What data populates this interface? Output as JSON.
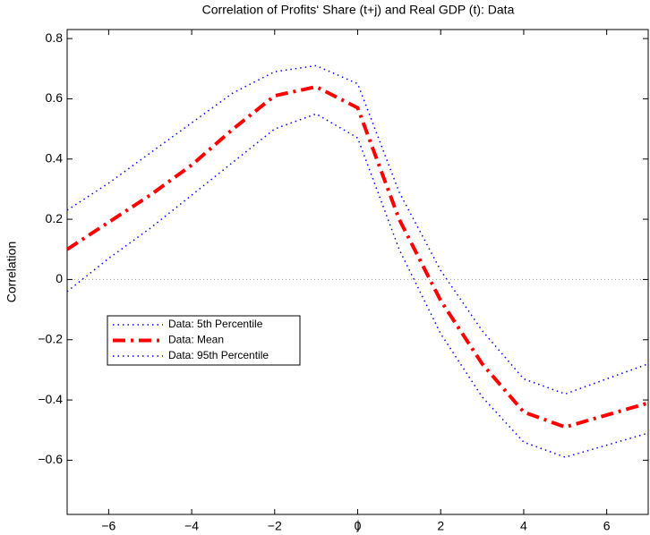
{
  "chart_data": {
    "type": "line",
    "title": "Correlation of Profits‘ Share (t+j) and Real GDP (t): Data",
    "xlabel": "j",
    "ylabel": "Correlation",
    "x": [
      -7,
      -6,
      -5,
      -4,
      -3,
      -2,
      -1,
      0,
      1,
      2,
      3,
      4,
      5,
      6,
      7
    ],
    "series": [
      {
        "name": "Data: 5th Percentile",
        "color": "#0000ff",
        "linestyle": "dotted",
        "values": [
          -0.04,
          0.07,
          0.17,
          0.28,
          0.39,
          0.5,
          0.55,
          0.47,
          0.1,
          -0.18,
          -0.39,
          -0.54,
          -0.59,
          -0.55,
          -0.51
        ]
      },
      {
        "name": "Data: Mean",
        "color": "#ff0000",
        "linestyle": "dashdot",
        "values": [
          0.1,
          0.19,
          0.28,
          0.38,
          0.5,
          0.61,
          0.64,
          0.57,
          0.2,
          -0.07,
          -0.28,
          -0.44,
          -0.49,
          -0.45,
          -0.41
        ]
      },
      {
        "name": "Data: 95th Percentile",
        "color": "#0000ff",
        "linestyle": "dotted",
        "values": [
          0.23,
          0.32,
          0.42,
          0.52,
          0.62,
          0.69,
          0.71,
          0.65,
          0.29,
          0.03,
          -0.17,
          -0.33,
          -0.38,
          -0.33,
          -0.28
        ]
      }
    ],
    "xlim": [
      -7,
      7
    ],
    "xticks": [
      -6,
      -4,
      -2,
      0,
      2,
      4,
      6
    ],
    "ylim": [
      -0.78,
      0.83
    ],
    "yticks": [
      {
        "value": -0.6,
        "label": "−0.6"
      },
      {
        "value": -0.4,
        "label": "−0.4"
      },
      {
        "value": -0.2,
        "label": "−0.2"
      },
      0,
      0.2,
      0.4,
      0.6,
      0.8
    ],
    "xtick_labels": [
      "−6",
      "−4",
      "−2",
      "0",
      "2",
      "4",
      "6"
    ],
    "legend": "lower left"
  }
}
